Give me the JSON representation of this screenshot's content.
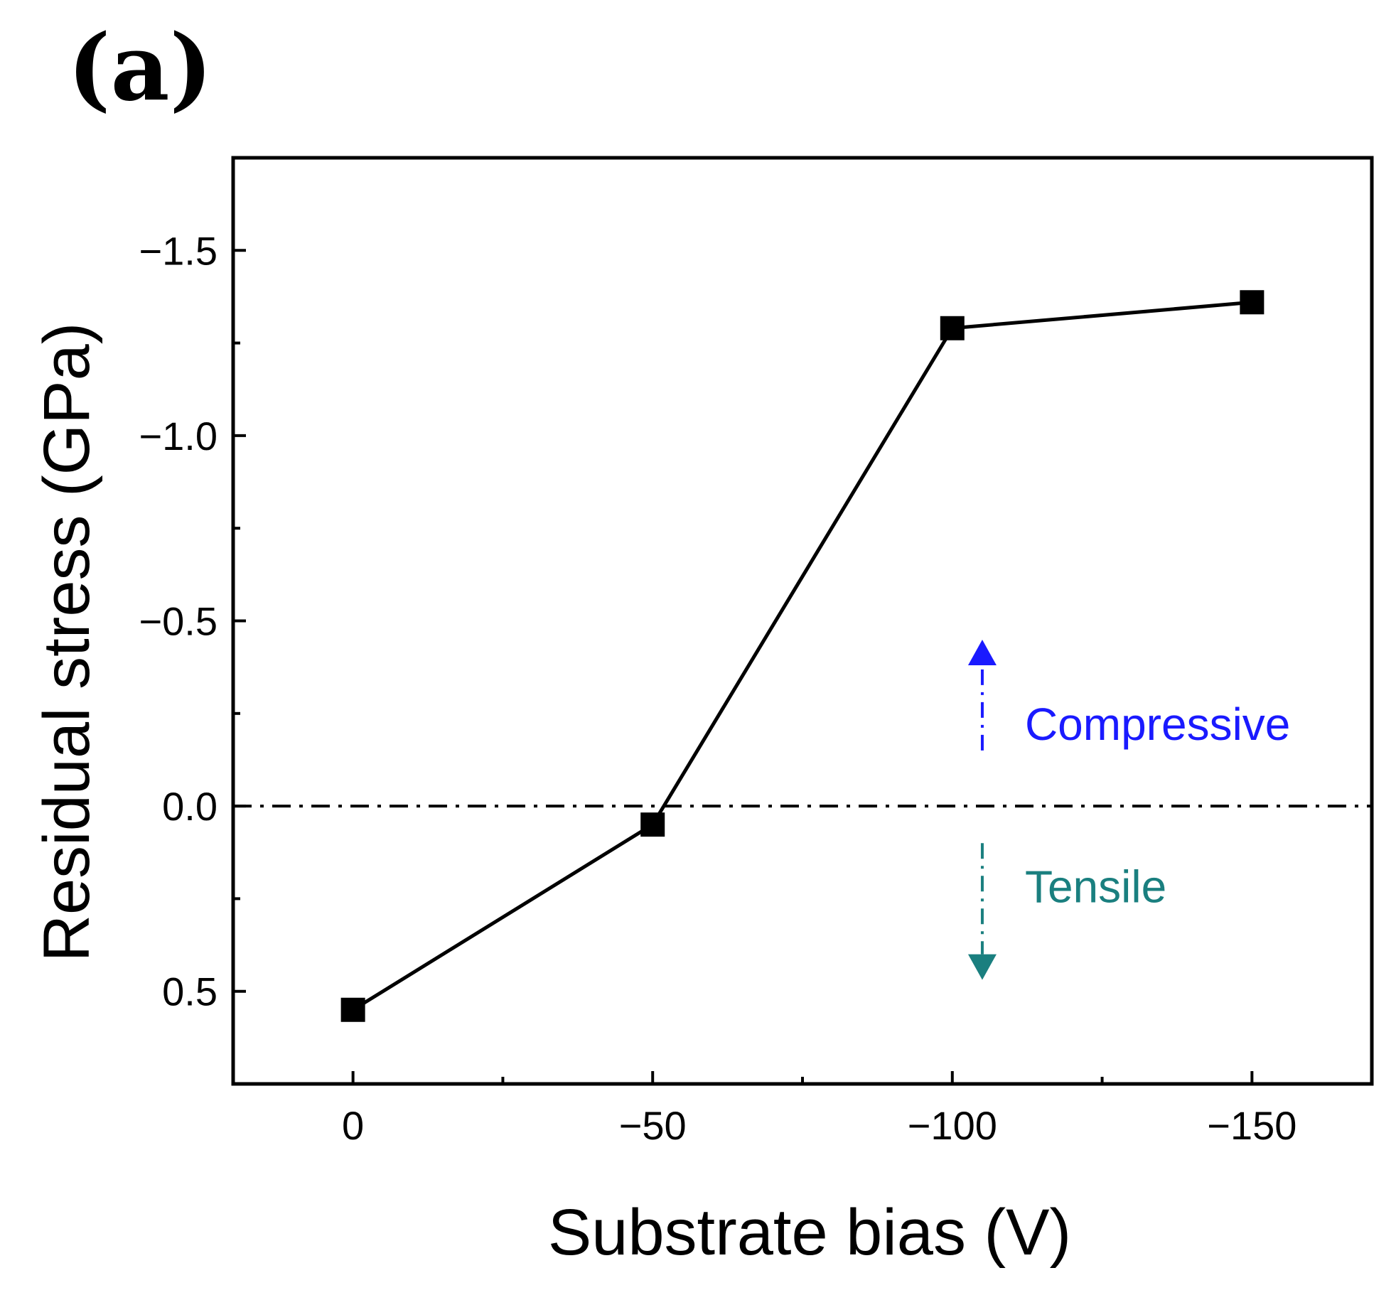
{
  "panel_label": "(a)",
  "chart_data": {
    "type": "line",
    "title": "",
    "xlabel": "Substrate bias (V)",
    "ylabel": "Residual stress (GPa)",
    "x_reversed": true,
    "y_reversed": true,
    "xlim": [
      20,
      -170
    ],
    "ylim": [
      0.75,
      -1.75
    ],
    "x_ticks": [
      0,
      -50,
      -100,
      -150
    ],
    "x_tick_labels": [
      "0",
      "−50",
      "−100",
      "−150"
    ],
    "x_minor_ticks": [
      -25,
      -75,
      -125
    ],
    "y_ticks": [
      0.5,
      0.0,
      -0.5,
      -1.0,
      -1.5
    ],
    "y_tick_labels": [
      "0.5",
      "0.0",
      "−0.5",
      "−1.0",
      "−1.5"
    ],
    "y_minor_ticks": [
      0.25,
      -0.25,
      -0.75,
      -1.25
    ],
    "series": [
      {
        "name": "Residual stress",
        "marker": "square",
        "color": "#000000",
        "x": [
          0,
          -50,
          -100,
          -150
        ],
        "y": [
          0.55,
          0.05,
          -1.29,
          -1.36
        ]
      }
    ],
    "reference_line": {
      "y": 0.0,
      "style": "dash-dot",
      "color": "#000000"
    },
    "annotations": [
      {
        "text": "Compressive",
        "color": "#1a1aff",
        "direction": "up",
        "x": -105,
        "y_from": -0.15,
        "y_to": -0.38
      },
      {
        "text": "Tensile",
        "color": "#1a7f7f",
        "direction": "down",
        "x": -105,
        "y_from": 0.1,
        "y_to": 0.4
      }
    ],
    "grid": false,
    "legend": "none"
  }
}
